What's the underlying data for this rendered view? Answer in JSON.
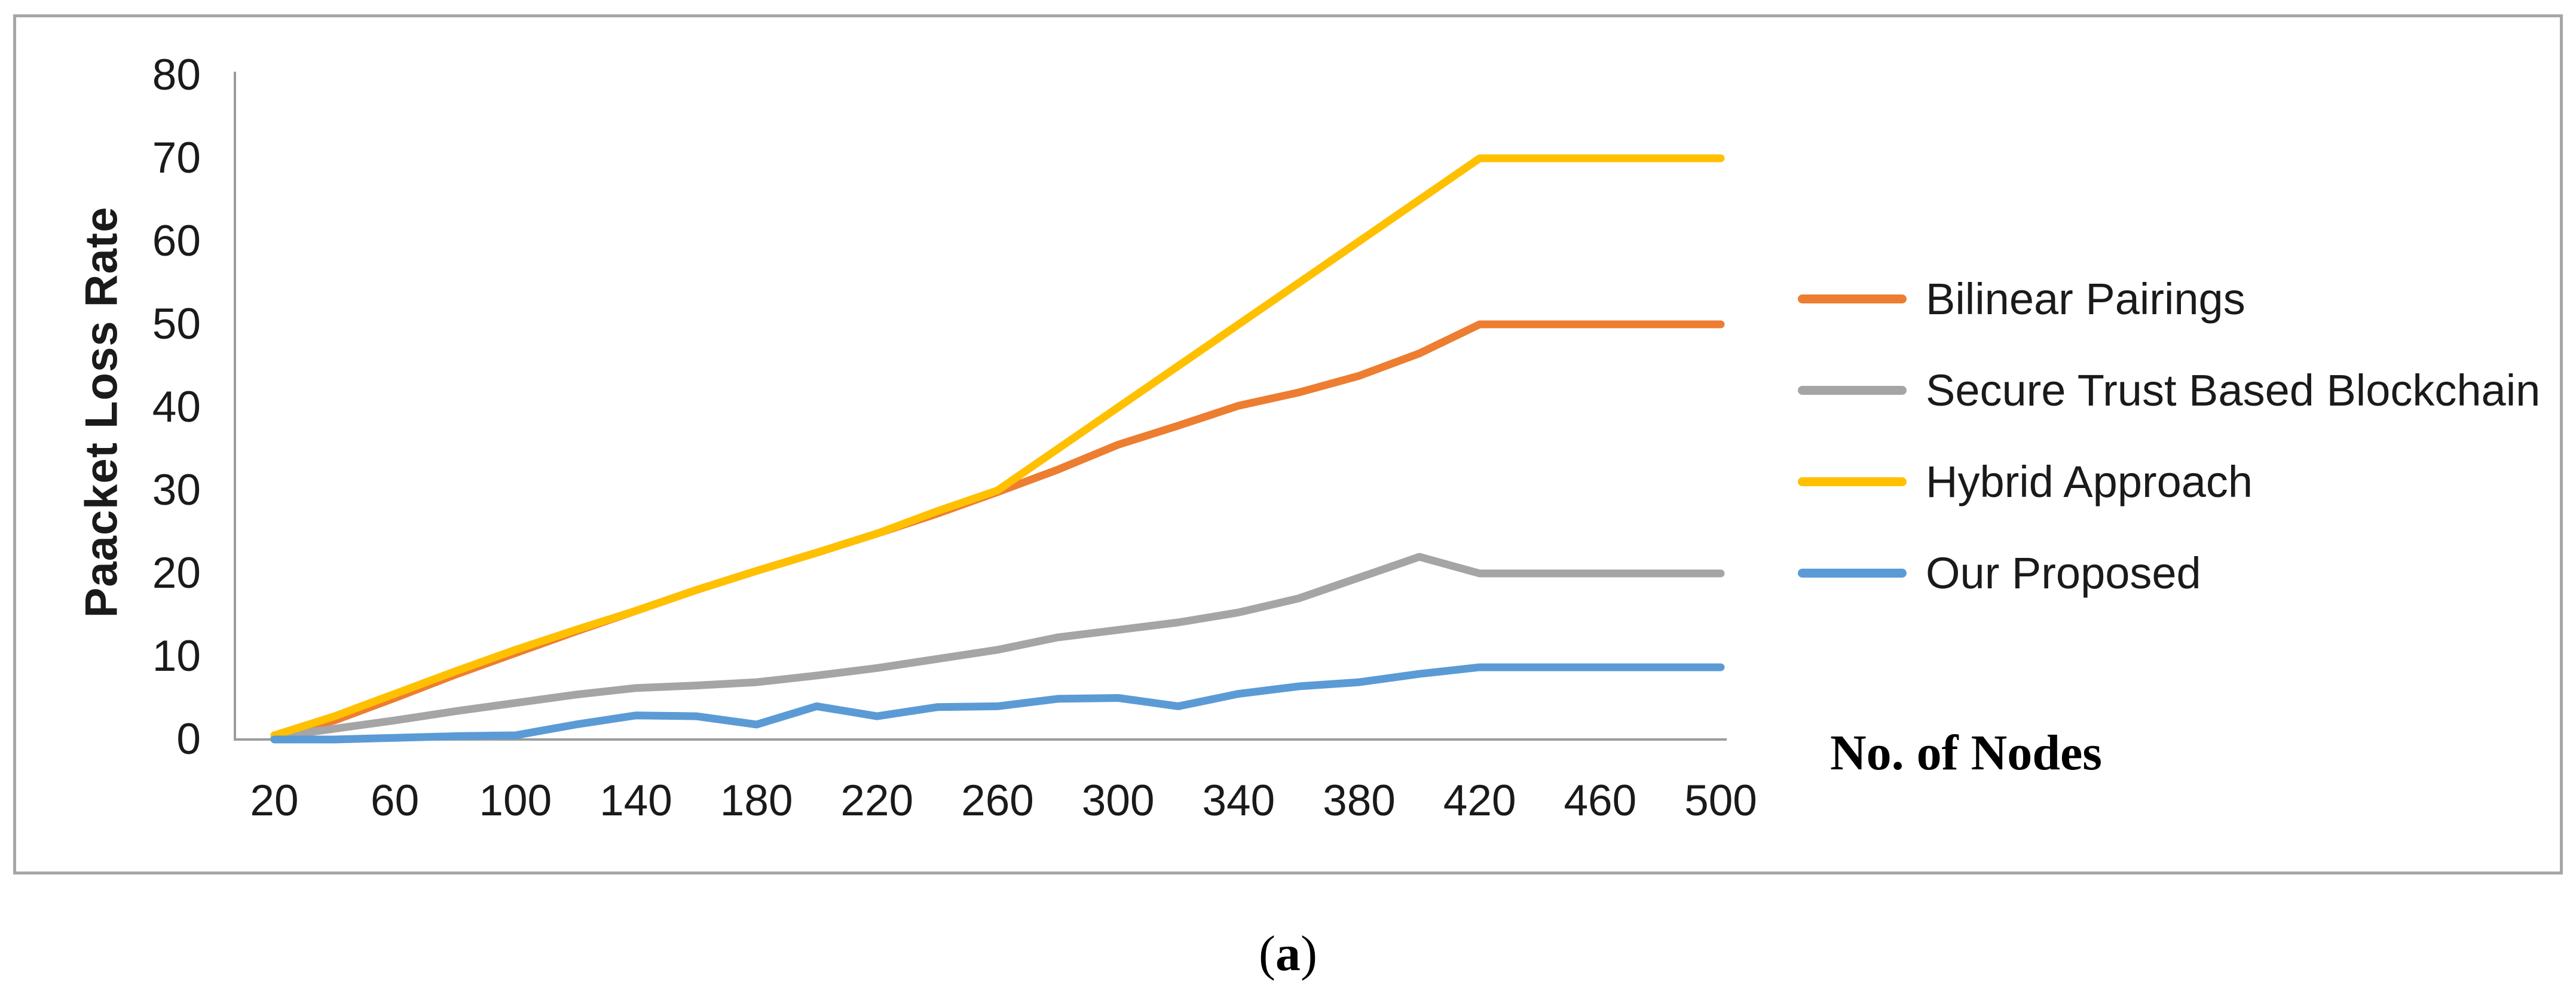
{
  "page": {
    "background": "#ffffff"
  },
  "figure": {
    "border_color": "#A6A6A6",
    "caption": {
      "open": "(",
      "letter": "a",
      "close": ")"
    }
  },
  "chart_data": {
    "type": "line",
    "title": "",
    "xlabel": "No. of Nodes",
    "ylabel": "Paacket Loss Rate",
    "x": [
      20,
      40,
      60,
      80,
      100,
      120,
      140,
      160,
      180,
      200,
      220,
      240,
      260,
      280,
      300,
      320,
      340,
      360,
      380,
      400,
      420,
      440,
      460,
      480,
      500
    ],
    "x_tick_labels": [
      "20",
      "60",
      "100",
      "140",
      "180",
      "220",
      "260",
      "300",
      "340",
      "380",
      "420",
      "460",
      "500"
    ],
    "y_tick_labels": [
      "0",
      "10",
      "20",
      "30",
      "40",
      "50",
      "60",
      "70",
      "80"
    ],
    "xlim": [
      20,
      500
    ],
    "ylim": [
      0,
      80
    ],
    "grid": false,
    "legend_position": "right-middle",
    "axis_color": "#9C9C9C",
    "series": [
      {
        "name": "Bilinear Pairings",
        "color": "#ED7D31",
        "values": [
          0.5,
          2.3,
          5,
          7.8,
          10.4,
          13,
          15.5,
          18,
          20.3,
          22.5,
          24.8,
          27.2,
          29.8,
          32.5,
          35.5,
          37.8,
          40.2,
          41.8,
          43.8,
          46.5,
          50,
          50,
          50,
          50,
          50
        ]
      },
      {
        "name": "Secure Trust Based Blockchain",
        "color": "#A5A5A5",
        "values": [
          0.3,
          1.3,
          2.3,
          3.4,
          4.4,
          5.4,
          6.2,
          6.5,
          6.9,
          7.7,
          8.6,
          9.7,
          10.8,
          12.3,
          13.2,
          14.1,
          15.3,
          17,
          19.5,
          22,
          20,
          20,
          20,
          20,
          20
        ]
      },
      {
        "name": "Hybrid Approach",
        "color": "#FFC000",
        "values": [
          0.5,
          2.8,
          5.5,
          8.2,
          10.8,
          13.2,
          15.5,
          18,
          20.3,
          22.5,
          24.8,
          27.5,
          30,
          35,
          40,
          45,
          50,
          55,
          60,
          65,
          70,
          70,
          70,
          70,
          70
        ]
      },
      {
        "name": "Our Proposed",
        "color": "#5B9BD5",
        "values": [
          0,
          0,
          0.2,
          0.4,
          0.5,
          1.8,
          2.9,
          2.8,
          1.8,
          4,
          2.8,
          3.9,
          4,
          4.9,
          5,
          4,
          5.5,
          6.4,
          6.9,
          7.9,
          8.7,
          8.7,
          8.7,
          8.7,
          8.7
        ]
      }
    ]
  }
}
